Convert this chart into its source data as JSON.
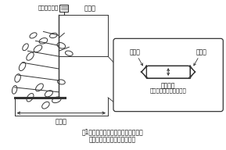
{
  "title_line1": "図1．地上部生重、重心高、主茎長、",
  "title_line2": "および茎の太さの測定模式図",
  "label_aboveground": "地上部生重量",
  "label_cog": "重心高",
  "label_stem_length": "主茎長",
  "label_node2": "第二節",
  "label_node1": "第一節",
  "label_thickness": "茎の太さ",
  "label_thickness2": "（主茎第一節間の長径）",
  "line_color": "#333333",
  "font_color": "#111111",
  "plant_leaves": [
    [
      48,
      62,
      -35,
      12,
      7
    ],
    [
      38,
      72,
      -50,
      12,
      7
    ],
    [
      28,
      85,
      -60,
      12,
      7
    ],
    [
      22,
      100,
      -70,
      11,
      7
    ],
    [
      18,
      115,
      -75,
      11,
      6
    ],
    [
      55,
      52,
      -20,
      11,
      7
    ],
    [
      42,
      45,
      -30,
      10,
      6
    ],
    [
      32,
      60,
      -55,
      10,
      6
    ],
    [
      78,
      58,
      20,
      11,
      7
    ],
    [
      88,
      68,
      15,
      10,
      6
    ],
    [
      68,
      45,
      -15,
      10,
      6
    ],
    [
      50,
      112,
      -45,
      12,
      7
    ],
    [
      38,
      125,
      -55,
      12,
      7
    ],
    [
      62,
      120,
      -30,
      11,
      7
    ],
    [
      78,
      105,
      10,
      10,
      6
    ],
    [
      72,
      128,
      -20,
      12,
      7
    ],
    [
      58,
      135,
      -40,
      11,
      7
    ]
  ]
}
